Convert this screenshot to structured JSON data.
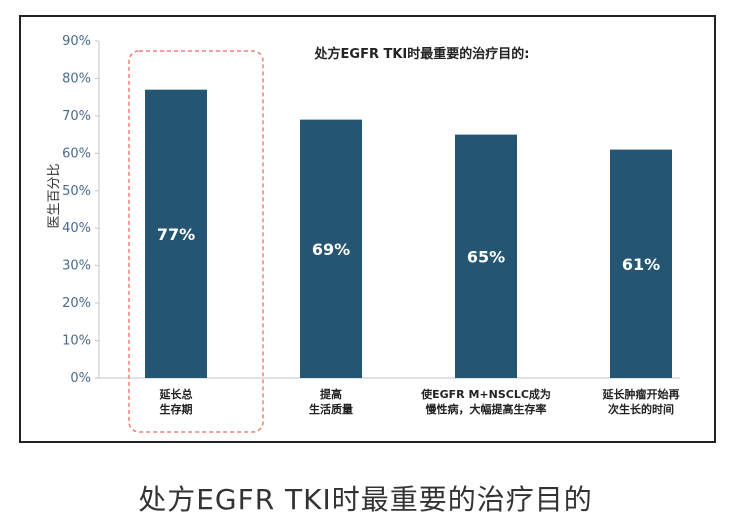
{
  "chart_data": {
    "type": "bar",
    "title": "处方EGFR TKI时最重要的治疗目的:",
    "ylabel": "医生百分比",
    "xlabel": "",
    "ylim": [
      0,
      90
    ],
    "yticks": [
      0,
      10,
      20,
      30,
      40,
      50,
      60,
      70,
      80,
      90
    ],
    "tick_suffix": "%",
    "categories": [
      [
        "延长总",
        "生存期"
      ],
      [
        "提高",
        "生活质量"
      ],
      [
        "使EGFR M+NSCLC成为",
        "慢性病，大幅提高生存率"
      ],
      [
        "延长肿瘤开始再",
        "次生长的时间"
      ]
    ],
    "values": [
      77,
      69,
      65,
      61
    ],
    "data_labels": [
      "77%",
      "69%",
      "65%",
      "61%"
    ],
    "highlight_index": 0,
    "grid": false,
    "colors": {
      "bar": "#245673",
      "axis_text": "#4a6a8a",
      "highlight_border": "#f08070",
      "label_text": "#ffffff"
    }
  },
  "caption": "处方EGFR TKI时最重要的治疗目的"
}
